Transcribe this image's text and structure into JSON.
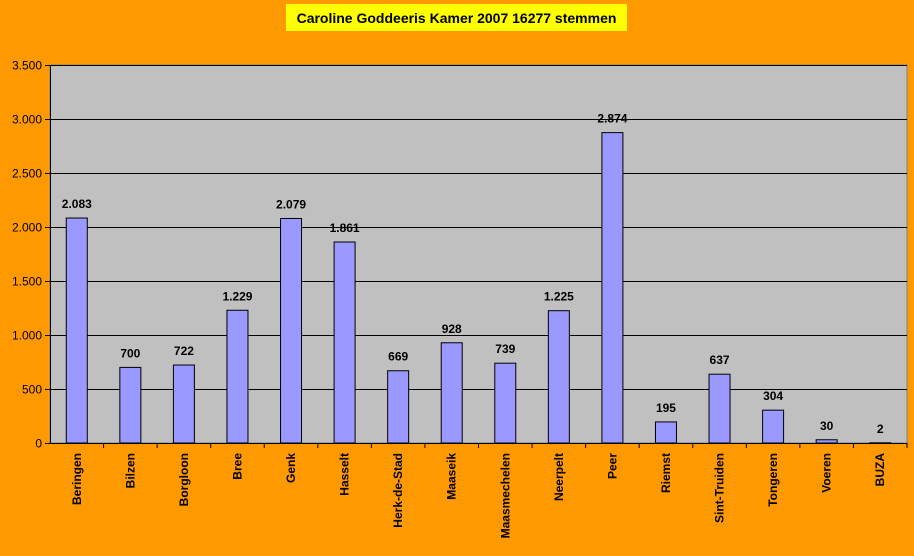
{
  "chart_data": {
    "type": "bar",
    "title": "Caroline Goddeeris Kamer 2007 16277 stemmen",
    "xlabel": "",
    "ylabel": "",
    "categories": [
      "Beringen",
      "Bilzen",
      "Borgloon",
      "Bree",
      "Genk",
      "Hasselt",
      "Herk-de-Stad",
      "Maaseik",
      "Maasmechelen",
      "Neerpelt",
      "Peer",
      "Riemst",
      "Sint-Truiden",
      "Tongeren",
      "Voeren",
      "BUZA"
    ],
    "values": [
      2083,
      700,
      722,
      1229,
      2079,
      1861,
      669,
      928,
      739,
      1225,
      2874,
      195,
      637,
      304,
      30,
      2
    ],
    "value_labels": [
      "2.083",
      "700",
      "722",
      "1.229",
      "2.079",
      "1.861",
      "669",
      "928",
      "739",
      "1.225",
      "2.874",
      "195",
      "637",
      "304",
      "30",
      "2"
    ],
    "ylim": [
      0,
      3500
    ],
    "yticks": [
      0,
      500,
      1000,
      1500,
      2000,
      2500,
      3000,
      3500
    ],
    "ytick_labels": [
      "0",
      "500",
      "1.000",
      "1.500",
      "2.000",
      "2.500",
      "3.000",
      "3.500"
    ],
    "grid": true,
    "legend": "none",
    "colors": {
      "background": "#FF9900",
      "plot_area": "#C0C0C0",
      "bar_fill": "#9999FF",
      "bar_stroke": "#000000",
      "title_background": "#FFFF00"
    }
  }
}
